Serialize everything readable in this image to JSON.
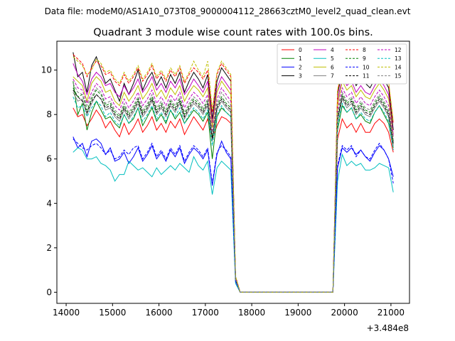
{
  "header": {
    "data_file": "Data file: modeM0/AS1A10_073T08_9000004112_28663cztM0_level2_quad_clean.evt"
  },
  "chart_data": {
    "type": "line",
    "title": "Quadrant 3 module wise count rates with 100.0s bins.",
    "xlabel": "",
    "ylabel": "",
    "x_offset_label": "+3.484e8",
    "xlim": [
      13800,
      21400
    ],
    "ylim": [
      -0.5,
      11.3
    ],
    "xticks": [
      14000,
      15000,
      16000,
      17000,
      18000,
      19000,
      20000,
      21000
    ],
    "yticks": [
      0,
      2,
      4,
      6,
      8,
      10
    ],
    "legend": {
      "position": "top-right",
      "columns": 4
    },
    "x": [
      14150,
      14250,
      14350,
      14450,
      14550,
      14650,
      14750,
      14850,
      14950,
      15050,
      15150,
      15250,
      15350,
      15450,
      15550,
      15650,
      15750,
      15850,
      15950,
      16050,
      16150,
      16250,
      16350,
      16450,
      16550,
      16650,
      16750,
      16850,
      16950,
      17050,
      17150,
      17250,
      17350,
      17450,
      17550,
      17650,
      17750,
      19750,
      19850,
      19950,
      20050,
      20150,
      20250,
      20350,
      20450,
      20550,
      20650,
      20750,
      20850,
      20950,
      21050
    ],
    "x_unit_offset": 348400000,
    "series": [
      {
        "name": "0",
        "color": "#ff0000",
        "dash": false,
        "values": [
          8.3,
          7.9,
          8.0,
          7.5,
          7.8,
          8.2,
          7.9,
          7.4,
          7.7,
          7.3,
          7.0,
          7.6,
          7.1,
          7.4,
          7.8,
          7.2,
          7.5,
          7.9,
          7.3,
          7.6,
          7.2,
          7.7,
          7.4,
          7.8,
          7.1,
          7.5,
          7.9,
          7.6,
          7.3,
          7.8,
          6.9,
          7.5,
          7.9,
          7.8,
          7.6,
          0.5,
          0.0,
          0.0,
          6.9,
          7.8,
          7.4,
          7.6,
          7.2,
          7.6,
          7.2,
          7.2,
          7.6,
          7.8,
          7.6,
          7.2,
          6.3
        ]
      },
      {
        "name": "1",
        "color": "#008000",
        "dash": false,
        "values": [
          9.5,
          8.0,
          8.5,
          7.3,
          8.1,
          8.6,
          8.2,
          7.8,
          7.9,
          7.6,
          7.4,
          8.0,
          7.6,
          7.8,
          8.3,
          7.5,
          7.9,
          8.3,
          7.7,
          8.0,
          7.6,
          8.2,
          7.8,
          8.1,
          7.6,
          7.9,
          8.2,
          8.0,
          7.7,
          8.1,
          6.0,
          7.9,
          8.3,
          8.1,
          7.9,
          0.6,
          0.0,
          0.0,
          7.3,
          8.4,
          8.1,
          8.3,
          7.8,
          8.0,
          7.7,
          7.6,
          8.1,
          8.4,
          8.0,
          7.6,
          6.5
        ]
      },
      {
        "name": "2",
        "color": "#0000ff",
        "dash": false,
        "values": [
          7.0,
          6.5,
          6.7,
          6.1,
          6.8,
          6.9,
          6.7,
          6.2,
          6.5,
          5.9,
          6.0,
          6.3,
          5.8,
          6.1,
          6.5,
          5.9,
          6.2,
          6.6,
          6.0,
          6.3,
          5.9,
          6.4,
          6.1,
          6.5,
          5.8,
          6.2,
          6.5,
          6.3,
          6.0,
          6.4,
          4.8,
          6.2,
          6.8,
          6.3,
          6.0,
          0.5,
          0.0,
          0.0,
          5.6,
          6.5,
          6.3,
          6.5,
          6.2,
          6.4,
          6.1,
          5.9,
          6.3,
          6.6,
          6.4,
          6.0,
          5.2
        ]
      },
      {
        "name": "3",
        "color": "#000000",
        "dash": false,
        "values": [
          10.8,
          9.7,
          9.9,
          9.0,
          10.2,
          10.6,
          10.0,
          9.4,
          9.6,
          9.1,
          8.6,
          9.4,
          8.9,
          9.4,
          10.0,
          9.1,
          9.6,
          9.9,
          9.3,
          9.7,
          9.2,
          9.8,
          9.4,
          9.9,
          9.0,
          9.5,
          9.9,
          9.6,
          9.2,
          9.8,
          7.8,
          9.5,
          10.1,
          9.8,
          9.5,
          0.7,
          0.0,
          0.0,
          8.9,
          10.0,
          9.7,
          9.9,
          9.3,
          9.6,
          9.4,
          9.2,
          9.6,
          10.0,
          9.6,
          9.2,
          7.3
        ]
      },
      {
        "name": "4",
        "color": "#bf00bf",
        "dash": false,
        "values": [
          10.3,
          9.8,
          9.5,
          8.9,
          9.6,
          9.9,
          9.7,
          9.3,
          9.4,
          9.0,
          8.8,
          9.3,
          8.9,
          9.2,
          9.6,
          9.0,
          9.3,
          9.7,
          9.1,
          9.4,
          9.0,
          9.5,
          9.2,
          9.6,
          8.9,
          9.2,
          9.6,
          9.3,
          9.0,
          9.5,
          7.6,
          9.2,
          9.7,
          9.4,
          9.1,
          0.7,
          0.0,
          0.0,
          8.6,
          9.7,
          9.3,
          9.5,
          9.0,
          9.3,
          9.0,
          8.9,
          9.3,
          9.6,
          9.3,
          8.9,
          7.1
        ]
      },
      {
        "name": "5",
        "color": "#00bfbf",
        "dash": false,
        "values": [
          6.3,
          6.5,
          6.4,
          6.0,
          6.0,
          6.1,
          5.8,
          5.7,
          5.5,
          5.0,
          5.3,
          5.3,
          5.9,
          5.7,
          5.5,
          5.6,
          5.4,
          5.2,
          5.6,
          5.3,
          5.5,
          5.7,
          5.5,
          5.8,
          5.6,
          5.4,
          6.1,
          5.7,
          5.5,
          5.9,
          4.4,
          5.6,
          5.9,
          5.7,
          5.5,
          0.4,
          0.0,
          0.0,
          5.0,
          6.2,
          5.7,
          5.9,
          5.7,
          5.8,
          5.5,
          5.5,
          5.6,
          5.8,
          5.7,
          5.6,
          4.5
        ]
      },
      {
        "name": "6",
        "color": "#bfbf00",
        "dash": false,
        "values": [
          9.7,
          9.5,
          9.3,
          8.6,
          9.4,
          9.7,
          9.5,
          9.0,
          9.1,
          8.6,
          8.4,
          9.0,
          8.6,
          8.9,
          9.3,
          8.7,
          9.0,
          9.4,
          8.8,
          9.1,
          8.7,
          9.2,
          8.9,
          9.3,
          8.6,
          9.0,
          9.3,
          9.1,
          8.8,
          9.2,
          7.4,
          9.0,
          9.5,
          9.2,
          8.9,
          0.7,
          0.0,
          0.0,
          8.4,
          9.5,
          9.1,
          9.3,
          8.8,
          9.1,
          8.8,
          8.7,
          9.1,
          9.4,
          9.1,
          8.7,
          7.0
        ]
      },
      {
        "name": "7",
        "color": "#808080",
        "dash": false,
        "values": [
          9.0,
          8.6,
          8.7,
          8.0,
          8.5,
          8.9,
          8.7,
          8.2,
          8.3,
          7.9,
          7.7,
          8.2,
          7.8,
          8.1,
          8.5,
          7.9,
          8.2,
          8.6,
          8.0,
          8.3,
          7.9,
          8.4,
          8.1,
          8.5,
          7.8,
          8.2,
          8.5,
          8.3,
          8.0,
          8.4,
          6.8,
          8.2,
          8.6,
          8.3,
          8.1,
          0.6,
          0.0,
          0.0,
          7.7,
          8.7,
          8.3,
          8.5,
          8.0,
          8.3,
          8.0,
          7.9,
          8.3,
          8.6,
          8.3,
          7.9,
          6.6
        ]
      },
      {
        "name": "8",
        "color": "#ff0000",
        "dash": true,
        "values": [
          10.7,
          10.5,
          10.3,
          9.7,
          10.1,
          10.4,
          10.2,
          9.8,
          9.9,
          9.5,
          9.3,
          9.8,
          9.4,
          9.7,
          10.1,
          9.5,
          9.8,
          10.2,
          9.6,
          9.9,
          9.5,
          10.0,
          9.7,
          10.1,
          9.4,
          9.8,
          10.1,
          9.9,
          9.6,
          10.0,
          8.1,
          9.8,
          10.3,
          10.0,
          9.7,
          0.7,
          0.0,
          0.0,
          9.0,
          10.2,
          9.8,
          10.0,
          9.5,
          9.8,
          9.5,
          9.4,
          9.8,
          10.1,
          9.8,
          9.4,
          7.6
        ]
      },
      {
        "name": "9",
        "color": "#008000",
        "dash": true,
        "values": [
          9.2,
          8.8,
          8.9,
          8.2,
          8.7,
          9.1,
          8.9,
          8.4,
          8.5,
          8.1,
          7.9,
          8.4,
          8.0,
          8.3,
          8.7,
          8.1,
          8.4,
          8.8,
          8.2,
          8.5,
          8.1,
          8.6,
          8.3,
          8.7,
          8.0,
          8.4,
          8.7,
          8.5,
          8.2,
          8.6,
          7.0,
          8.4,
          8.8,
          8.5,
          8.3,
          0.6,
          0.0,
          0.0,
          7.9,
          8.9,
          8.5,
          8.7,
          8.2,
          8.5,
          8.2,
          8.1,
          8.5,
          8.8,
          8.5,
          8.1,
          6.8
        ]
      },
      {
        "name": "10",
        "color": "#0000ff",
        "dash": true,
        "values": [
          6.9,
          6.7,
          6.5,
          6.4,
          6.6,
          6.7,
          6.5,
          6.2,
          6.4,
          6.0,
          6.1,
          6.4,
          6.2,
          6.5,
          6.6,
          6.0,
          6.3,
          6.7,
          6.1,
          6.4,
          6.0,
          6.5,
          6.2,
          6.6,
          5.9,
          6.3,
          6.6,
          6.4,
          6.1,
          6.5,
          4.9,
          6.3,
          6.6,
          6.4,
          6.1,
          0.5,
          0.0,
          0.0,
          5.7,
          6.6,
          6.4,
          6.6,
          6.1,
          6.4,
          6.1,
          6.0,
          6.4,
          6.7,
          6.4,
          6.0,
          4.9
        ]
      },
      {
        "name": "11",
        "color": "#000000",
        "dash": true,
        "values": [
          9.1,
          8.8,
          8.6,
          8.1,
          8.6,
          8.9,
          8.7,
          8.3,
          8.4,
          8.0,
          7.8,
          8.3,
          7.9,
          8.2,
          8.6,
          8.0,
          8.3,
          8.7,
          8.1,
          8.4,
          8.0,
          8.5,
          8.2,
          8.6,
          7.9,
          8.3,
          8.6,
          8.4,
          8.1,
          8.5,
          6.9,
          8.3,
          8.7,
          8.4,
          8.2,
          0.6,
          0.0,
          0.0,
          7.8,
          8.8,
          8.4,
          8.6,
          8.1,
          8.4,
          8.1,
          8.0,
          8.4,
          8.7,
          8.4,
          8.0,
          6.7
        ]
      },
      {
        "name": "12",
        "color": "#bf00bf",
        "dash": true,
        "values": [
          9.6,
          9.2,
          9.1,
          8.5,
          9.0,
          9.4,
          9.2,
          8.7,
          8.8,
          8.4,
          8.2,
          8.7,
          8.3,
          8.6,
          9.0,
          8.4,
          8.7,
          9.1,
          8.5,
          8.8,
          8.4,
          8.9,
          8.6,
          9.0,
          8.3,
          8.7,
          9.0,
          8.8,
          8.5,
          8.9,
          7.2,
          8.7,
          9.2,
          8.9,
          8.6,
          0.6,
          0.0,
          0.0,
          8.2,
          9.2,
          8.8,
          9.0,
          8.5,
          8.8,
          8.5,
          8.4,
          8.8,
          9.1,
          8.8,
          8.4,
          7.0
        ]
      },
      {
        "name": "13",
        "color": "#00bfbf",
        "dash": true,
        "values": [
          8.8,
          8.3,
          8.4,
          7.9,
          8.3,
          8.6,
          8.4,
          7.9,
          8.1,
          7.7,
          7.5,
          8.0,
          7.6,
          7.9,
          8.3,
          7.7,
          8.0,
          8.4,
          7.8,
          8.1,
          7.7,
          8.2,
          7.9,
          8.3,
          7.6,
          8.0,
          8.3,
          8.1,
          7.8,
          8.2,
          6.6,
          8.0,
          8.4,
          8.1,
          7.9,
          0.6,
          0.0,
          0.0,
          7.5,
          8.5,
          8.1,
          8.3,
          7.8,
          8.1,
          7.8,
          7.7,
          8.1,
          8.4,
          8.1,
          7.7,
          6.4
        ]
      },
      {
        "name": "14",
        "color": "#bfbf00",
        "dash": true,
        "values": [
          10.6,
          10.4,
          10.2,
          9.8,
          10.0,
          10.5,
          10.3,
          9.9,
          10.0,
          9.6,
          9.4,
          9.9,
          9.5,
          9.8,
          10.2,
          9.6,
          9.9,
          10.3,
          9.7,
          10.0,
          9.6,
          10.1,
          9.8,
          10.2,
          9.5,
          9.9,
          10.4,
          10.0,
          9.7,
          10.4,
          8.2,
          9.9,
          10.4,
          10.1,
          9.8,
          0.7,
          0.0,
          0.0,
          9.1,
          10.3,
          9.9,
          10.1,
          9.6,
          9.9,
          9.6,
          9.5,
          9.9,
          10.2,
          9.9,
          9.5,
          7.7
        ]
      },
      {
        "name": "15",
        "color": "#808080",
        "dash": true,
        "values": [
          9.4,
          9.0,
          8.9,
          8.4,
          8.8,
          9.2,
          9.0,
          8.5,
          8.6,
          8.2,
          8.0,
          8.5,
          8.1,
          8.4,
          8.8,
          8.2,
          8.5,
          8.9,
          8.3,
          8.6,
          8.2,
          8.7,
          8.4,
          8.8,
          8.1,
          8.5,
          8.8,
          8.6,
          8.3,
          8.7,
          7.1,
          8.5,
          9.0,
          8.7,
          8.4,
          0.6,
          0.0,
          0.0,
          8.0,
          9.0,
          8.6,
          8.8,
          8.3,
          8.6,
          8.3,
          8.2,
          8.6,
          8.9,
          8.6,
          8.2,
          6.9
        ]
      }
    ]
  }
}
